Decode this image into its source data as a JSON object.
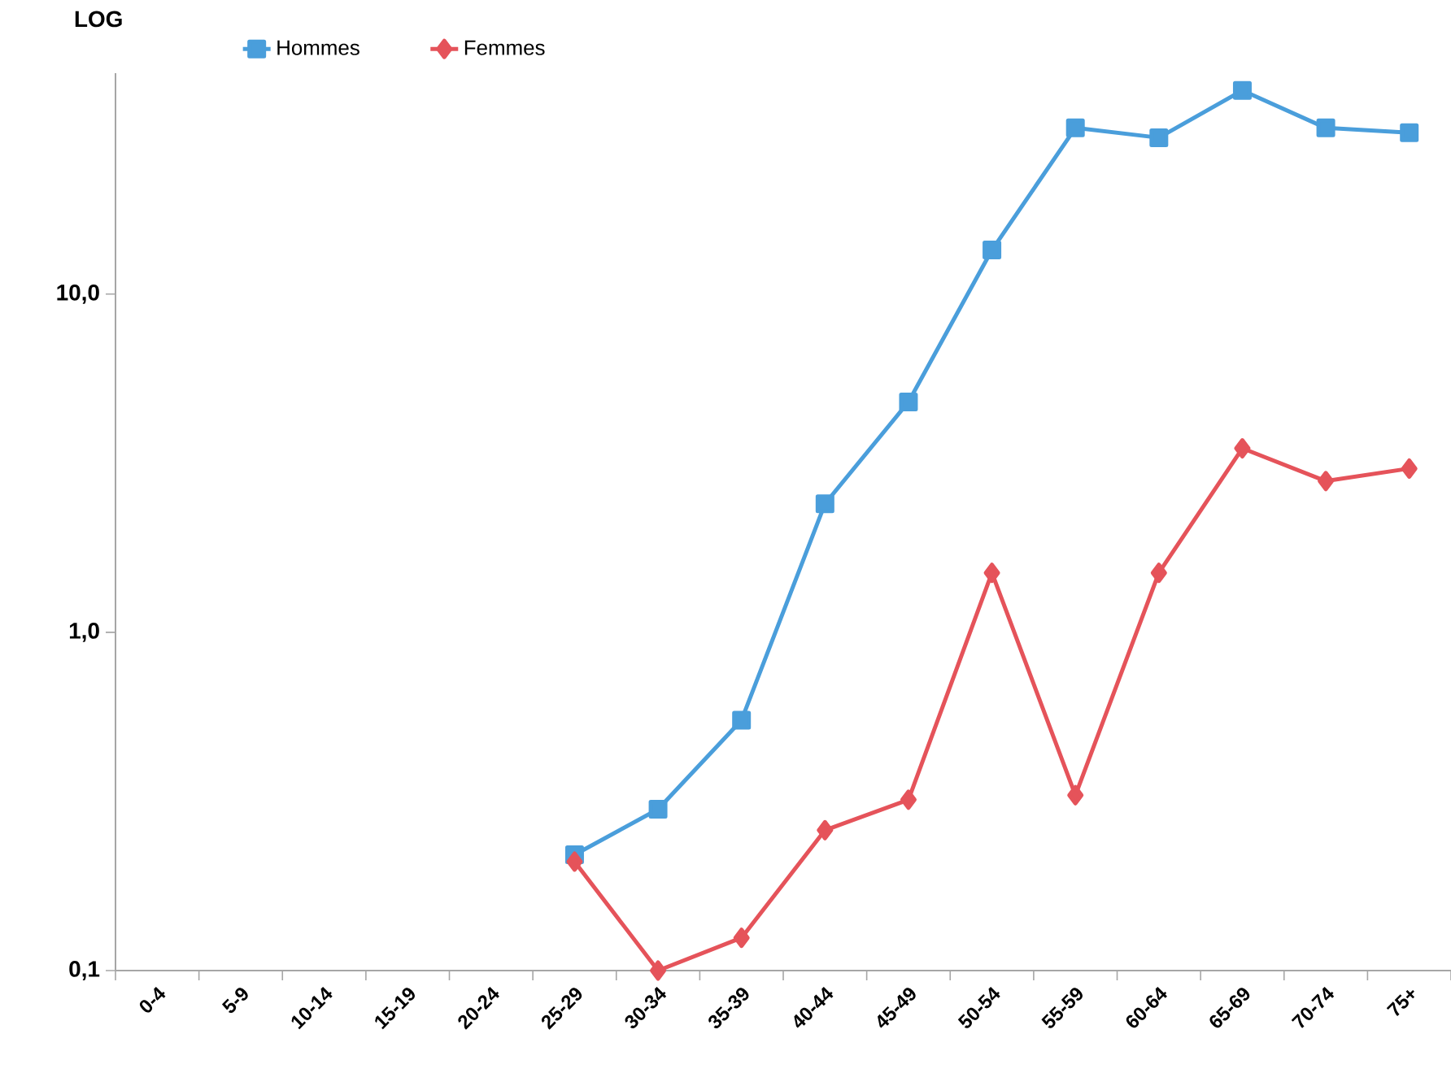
{
  "chart_data": {
    "type": "line",
    "categories": [
      "0-4",
      "5-9",
      "10-14",
      "15-19",
      "20-24",
      "25-29",
      "30-34",
      "35-39",
      "40-44",
      "45-49",
      "50-54",
      "55-59",
      "60-64",
      "65-69",
      "70-74",
      "75+"
    ],
    "series": [
      {
        "name": "Hommes",
        "color": "#4a9edb",
        "marker": "square",
        "values": [
          null,
          null,
          null,
          null,
          null,
          0.22,
          0.3,
          0.55,
          2.4,
          4.8,
          13.5,
          31,
          29,
          40,
          31,
          30
        ]
      },
      {
        "name": "Femmes",
        "color": "#e5535a",
        "marker": "diamond",
        "values": [
          null,
          null,
          null,
          null,
          null,
          0.21,
          0.1,
          0.125,
          0.26,
          0.32,
          1.5,
          0.33,
          1.5,
          3.5,
          2.8,
          3.05
        ]
      }
    ],
    "log": "y",
    "ylim": [
      0.1,
      45
    ],
    "yticks": [
      {
        "value": 0.1,
        "label": "0,1"
      },
      {
        "value": 1,
        "label": "1,0"
      },
      {
        "value": 10,
        "label": "10,0"
      }
    ],
    "legend": "top",
    "grid": false,
    "annotations": [
      "LOG"
    ]
  }
}
